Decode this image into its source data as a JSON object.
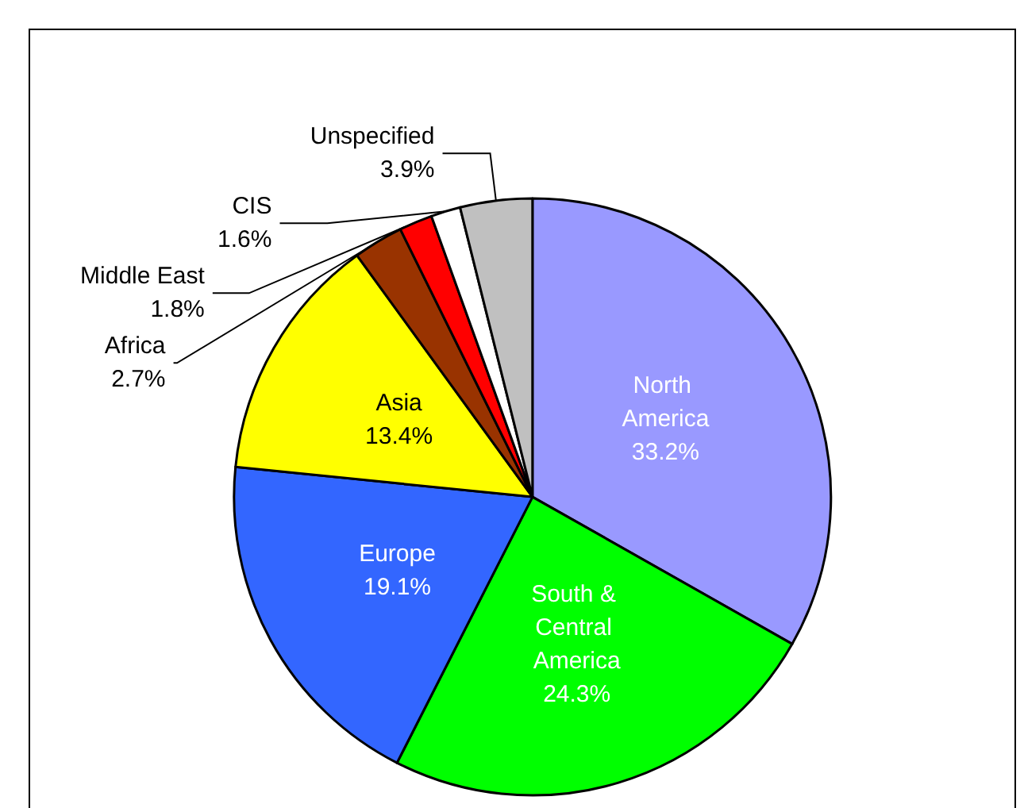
{
  "chart_data": {
    "type": "pie",
    "categories": [
      "North America",
      "South & Central America",
      "Europe",
      "Asia",
      "Africa",
      "Middle East",
      "CIS",
      "Unspecified"
    ],
    "values": [
      33.2,
      24.3,
      19.1,
      13.4,
      2.7,
      1.8,
      1.6,
      3.9
    ],
    "colors": [
      "#9999ff",
      "#00ff00",
      "#3366ff",
      "#ffff00",
      "#993300",
      "#ff0000",
      "#ffffff",
      "#c0c0c0"
    ],
    "value_labels": [
      "33.2%",
      "24.3%",
      "19.1%",
      "13.4%",
      "2.7%",
      "1.8%",
      "1.6%",
      "3.9%"
    ],
    "legend": false
  }
}
